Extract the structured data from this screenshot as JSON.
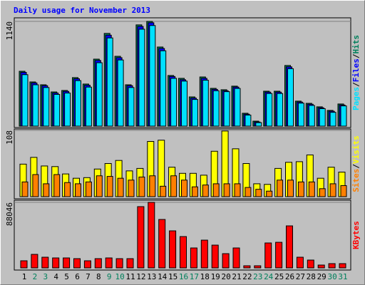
{
  "title": "Daily usage for November 2013",
  "legend_separator": "/",
  "chart_data": [
    {
      "type": "bar",
      "ylim": [
        0,
        1140
      ],
      "yticks": [
        1140
      ],
      "series": [
        {
          "name": "Hits",
          "color": "#00805c",
          "values": [
            597,
            481,
            450,
            372,
            388,
            528,
            458,
            729,
            1009,
            760,
            450,
            1102,
            1140,
            861,
            551,
            520,
            318,
            535,
            411,
            396,
            435,
            140,
            54,
            380,
            380,
            660,
            272,
            248,
            210,
            171,
            241
          ]
        },
        {
          "name": "Files",
          "color": "#0000ff",
          "values": [
            585,
            470,
            440,
            360,
            378,
            515,
            445,
            715,
            990,
            745,
            440,
            1085,
            1125,
            845,
            540,
            505,
            305,
            520,
            400,
            385,
            425,
            130,
            45,
            370,
            370,
            645,
            262,
            238,
            200,
            162,
            230
          ]
        },
        {
          "name": "Pages",
          "color": "#00e0ff",
          "values": [
            560,
            450,
            420,
            345,
            360,
            495,
            425,
            690,
            960,
            720,
            420,
            1055,
            1095,
            820,
            520,
            490,
            290,
            500,
            385,
            375,
            410,
            120,
            38,
            355,
            355,
            625,
            250,
            225,
            190,
            150,
            220
          ]
        }
      ]
    },
    {
      "type": "bar",
      "ylim": [
        0,
        108
      ],
      "yticks": [
        108
      ],
      "series": [
        {
          "name": "Visits",
          "color": "#ffff00",
          "values": [
            53,
            64,
            50,
            49,
            37,
            30,
            31,
            45,
            54,
            59,
            42,
            46,
            90,
            92,
            48,
            38,
            38,
            35,
            74,
            107,
            78,
            54,
            21,
            20,
            46,
            56,
            57,
            68,
            30,
            48,
            40
          ]
        },
        {
          "name": "Sites",
          "color": "#ff8000",
          "values": [
            24,
            36,
            21,
            36,
            23,
            21,
            24,
            34,
            33,
            30,
            27,
            32,
            34,
            17,
            34,
            27,
            16,
            19,
            21,
            21,
            21,
            15,
            12,
            9,
            27,
            27,
            24,
            24,
            13,
            21,
            18
          ]
        }
      ]
    },
    {
      "type": "bar",
      "ylim": [
        0,
        88046
      ],
      "yticks": [
        88046
      ],
      "categories": [
        "1",
        "2",
        "3",
        "4",
        "5",
        "6",
        "7",
        "8",
        "9",
        "10",
        "11",
        "12",
        "13",
        "14",
        "15",
        "16",
        "17",
        "18",
        "19",
        "20",
        "21",
        "22",
        "23",
        "24",
        "25",
        "26",
        "27",
        "28",
        "29",
        "30",
        "31"
      ],
      "category_colors": [
        "#000000",
        "#00805c",
        "#00805c",
        "#000000",
        "#000000",
        "#000000",
        "#000000",
        "#000000",
        "#00805c",
        "#00805c",
        "#000000",
        "#000000",
        "#000000",
        "#000000",
        "#000000",
        "#00805c",
        "#00805c",
        "#000000",
        "#000000",
        "#000000",
        "#000000",
        "#000000",
        "#00805c",
        "#00805c",
        "#000000",
        "#000000",
        "#000000",
        "#000000",
        "#000000",
        "#00805c",
        "#00805c"
      ],
      "series": [
        {
          "name": "KBytes",
          "color": "#ff0000",
          "values": [
            9570,
            18180,
            14350,
            13400,
            13400,
            12440,
            9570,
            12440,
            13400,
            12440,
            12440,
            82300,
            88046,
            65070,
            49760,
            42100,
            26800,
            37300,
            30600,
            19140,
            26800,
            2870,
            2870,
            33500,
            34400,
            56450,
            14350,
            10530,
            3830,
            5740,
            5740
          ]
        }
      ]
    }
  ]
}
